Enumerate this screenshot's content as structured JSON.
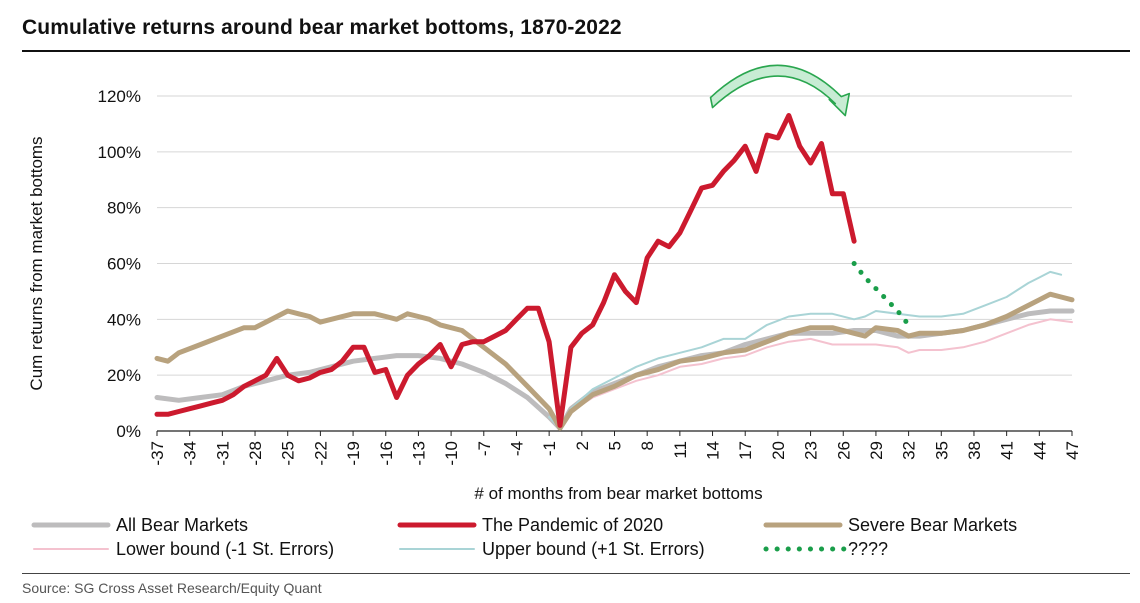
{
  "title": "Cumulative returns around bear market bottoms, 1870-2022",
  "source": "Source: SG Cross Asset Research/Equity Quant",
  "chart_data": {
    "type": "line",
    "title": "Cumulative returns around bear market bottoms, 1870-2022",
    "xlabel": "# of months from bear market bottoms",
    "ylabel": "Cum returns from market bottoms",
    "xlim": [
      -37,
      47
    ],
    "ylim": [
      0,
      1.2
    ],
    "yticks": [
      0,
      0.2,
      0.4,
      0.6,
      0.8,
      1.0,
      1.2
    ],
    "ytick_labels": [
      "0%",
      "20%",
      "40%",
      "60%",
      "80%",
      "100%",
      "120%"
    ],
    "xticks": [
      -37,
      -34,
      -31,
      -28,
      -25,
      -22,
      -19,
      -16,
      -13,
      -10,
      -7,
      -4,
      -1,
      2,
      5,
      8,
      11,
      14,
      17,
      20,
      23,
      26,
      29,
      32,
      35,
      38,
      41,
      44,
      47
    ],
    "xtick_labels": [
      "-37",
      "-34",
      "-31",
      "-28",
      "-25",
      "-22",
      "-19",
      "-16",
      "-13",
      "-10",
      "-7",
      "-4",
      "-1",
      "2",
      "5",
      "8",
      "11",
      "14",
      "17",
      "20",
      "23",
      "26",
      "29",
      "32",
      "35",
      "38",
      "41",
      "44",
      "47"
    ],
    "grid": "horizontal",
    "legend_position": "bottom",
    "series": [
      {
        "name": "All Bear Markets",
        "color": "#bdbcbd",
        "style": "solid-thick",
        "x": [
          -37,
          -35,
          -33,
          -31,
          -29,
          -27,
          -25,
          -23,
          -21,
          -19,
          -17,
          -15,
          -13,
          -11,
          -9,
          -7,
          -5,
          -3,
          -1,
          0,
          1,
          3,
          5,
          7,
          9,
          11,
          13,
          15,
          17,
          19,
          21,
          23,
          25,
          27,
          29,
          31,
          33,
          35,
          37,
          39,
          41,
          43,
          45,
          47
        ],
        "y": [
          0.12,
          0.11,
          0.12,
          0.13,
          0.16,
          0.18,
          0.2,
          0.21,
          0.23,
          0.25,
          0.26,
          0.27,
          0.27,
          0.26,
          0.24,
          0.21,
          0.17,
          0.12,
          0.05,
          0.01,
          0.08,
          0.14,
          0.17,
          0.2,
          0.23,
          0.25,
          0.27,
          0.28,
          0.31,
          0.33,
          0.35,
          0.35,
          0.35,
          0.36,
          0.36,
          0.34,
          0.34,
          0.35,
          0.36,
          0.38,
          0.4,
          0.42,
          0.43,
          0.43
        ]
      },
      {
        "name": "The Pandemic of 2020",
        "color": "#cc1a2e",
        "style": "solid-thick",
        "x": [
          -37,
          -36,
          -35,
          -34,
          -33,
          -32,
          -31,
          -30,
          -29,
          -28,
          -27,
          -26,
          -25,
          -24,
          -23,
          -22,
          -21,
          -20,
          -19,
          -18,
          -17,
          -16,
          -15,
          -14,
          -13,
          -12,
          -11,
          -10,
          -9,
          -8,
          -7,
          -6,
          -5,
          -4,
          -3,
          -2,
          -1,
          0,
          1,
          2,
          3,
          4,
          5,
          6,
          7,
          8,
          9,
          10,
          11,
          12,
          13,
          14,
          15,
          16,
          17,
          18,
          19,
          20,
          21,
          22,
          23,
          24,
          25,
          26,
          27
        ],
        "y": [
          0.06,
          0.06,
          0.07,
          0.08,
          0.09,
          0.1,
          0.11,
          0.13,
          0.16,
          0.18,
          0.2,
          0.26,
          0.2,
          0.18,
          0.19,
          0.21,
          0.22,
          0.25,
          0.3,
          0.3,
          0.21,
          0.22,
          0.12,
          0.2,
          0.24,
          0.27,
          0.31,
          0.23,
          0.31,
          0.32,
          0.32,
          0.34,
          0.36,
          0.4,
          0.44,
          0.44,
          0.32,
          0.02,
          0.3,
          0.35,
          0.38,
          0.46,
          0.56,
          0.5,
          0.46,
          0.62,
          0.68,
          0.66,
          0.71,
          0.79,
          0.87,
          0.88,
          0.93,
          0.97,
          1.02,
          0.93,
          1.06,
          1.05,
          1.13,
          1.02,
          0.96,
          1.03,
          0.85,
          0.85,
          0.68
        ]
      },
      {
        "name": "Severe Bear Markets",
        "color": "#b8a27e",
        "style": "solid-thick",
        "x": [
          -37,
          -36,
          -35,
          -33,
          -31,
          -29,
          -28,
          -27,
          -25,
          -24,
          -23,
          -22,
          -21,
          -19,
          -17,
          -16,
          -15,
          -14,
          -13,
          -12,
          -11,
          -10,
          -9,
          -8,
          -7,
          -5,
          -3,
          -1,
          0,
          1,
          3,
          5,
          7,
          9,
          11,
          13,
          15,
          17,
          19,
          21,
          23,
          25,
          27,
          28,
          29,
          31,
          32,
          33,
          35,
          37,
          39,
          41,
          43,
          44,
          45,
          46,
          47
        ],
        "y": [
          0.26,
          0.25,
          0.28,
          0.31,
          0.34,
          0.37,
          0.37,
          0.39,
          0.43,
          0.42,
          0.41,
          0.39,
          0.4,
          0.42,
          0.42,
          0.41,
          0.4,
          0.42,
          0.41,
          0.4,
          0.38,
          0.37,
          0.36,
          0.33,
          0.3,
          0.24,
          0.16,
          0.08,
          0.01,
          0.07,
          0.13,
          0.16,
          0.2,
          0.22,
          0.25,
          0.26,
          0.28,
          0.29,
          0.32,
          0.35,
          0.37,
          0.37,
          0.35,
          0.34,
          0.37,
          0.36,
          0.34,
          0.35,
          0.35,
          0.36,
          0.38,
          0.41,
          0.45,
          0.47,
          0.49,
          0.48,
          0.47
        ]
      },
      {
        "name": "Lower bound (-1 St. Errors)",
        "color": "#f4c2cf",
        "style": "solid-thin",
        "x": [
          -1,
          0,
          1,
          3,
          5,
          7,
          9,
          11,
          13,
          15,
          17,
          19,
          21,
          23,
          25,
          27,
          29,
          31,
          32,
          33,
          35,
          37,
          39,
          41,
          43,
          45,
          47
        ],
        "y": [
          0.05,
          0.01,
          0.07,
          0.12,
          0.15,
          0.18,
          0.2,
          0.23,
          0.24,
          0.26,
          0.27,
          0.3,
          0.32,
          0.33,
          0.31,
          0.31,
          0.31,
          0.3,
          0.28,
          0.29,
          0.29,
          0.3,
          0.32,
          0.35,
          0.38,
          0.4,
          0.39
        ]
      },
      {
        "name": "Upper bound (+1 St. Errors)",
        "color": "#a9d4d6",
        "style": "solid-thin",
        "x": [
          -1,
          0,
          1,
          3,
          5,
          7,
          9,
          11,
          13,
          15,
          17,
          19,
          21,
          23,
          25,
          27,
          28,
          29,
          31,
          33,
          35,
          37,
          39,
          41,
          43,
          44,
          45,
          46
        ],
        "y": [
          0.05,
          0.01,
          0.08,
          0.15,
          0.19,
          0.23,
          0.26,
          0.28,
          0.3,
          0.33,
          0.33,
          0.38,
          0.41,
          0.42,
          0.42,
          0.4,
          0.41,
          0.43,
          0.42,
          0.41,
          0.41,
          0.42,
          0.45,
          0.48,
          0.53,
          0.55,
          0.57,
          0.56
        ]
      },
      {
        "name": "????",
        "color": "#1a9e4a",
        "style": "dotted",
        "x": [
          27,
          28,
          29,
          30,
          31,
          32
        ],
        "y": [
          0.6,
          0.55,
          0.51,
          0.47,
          0.43,
          0.38
        ]
      }
    ],
    "annotations": [
      {
        "type": "curved-arrow",
        "color": "#2aa64f",
        "from_x": 14,
        "to_x": 26,
        "at_y": 1.18
      }
    ]
  },
  "legend": [
    {
      "label": "All Bear Markets",
      "color": "#bdbcbd",
      "style": "solid-thick"
    },
    {
      "label": "The Pandemic of 2020",
      "color": "#cc1a2e",
      "style": "solid-thick"
    },
    {
      "label": "Severe Bear Markets",
      "color": "#b8a27e",
      "style": "solid-thick"
    },
    {
      "label": "Lower bound (-1 St. Errors)",
      "color": "#f4c2cf",
      "style": "solid-thin"
    },
    {
      "label": "Upper bound (+1 St. Errors)",
      "color": "#a9d4d6",
      "style": "solid-thin"
    },
    {
      "label": "????",
      "color": "#1a9e4a",
      "style": "dotted"
    }
  ]
}
